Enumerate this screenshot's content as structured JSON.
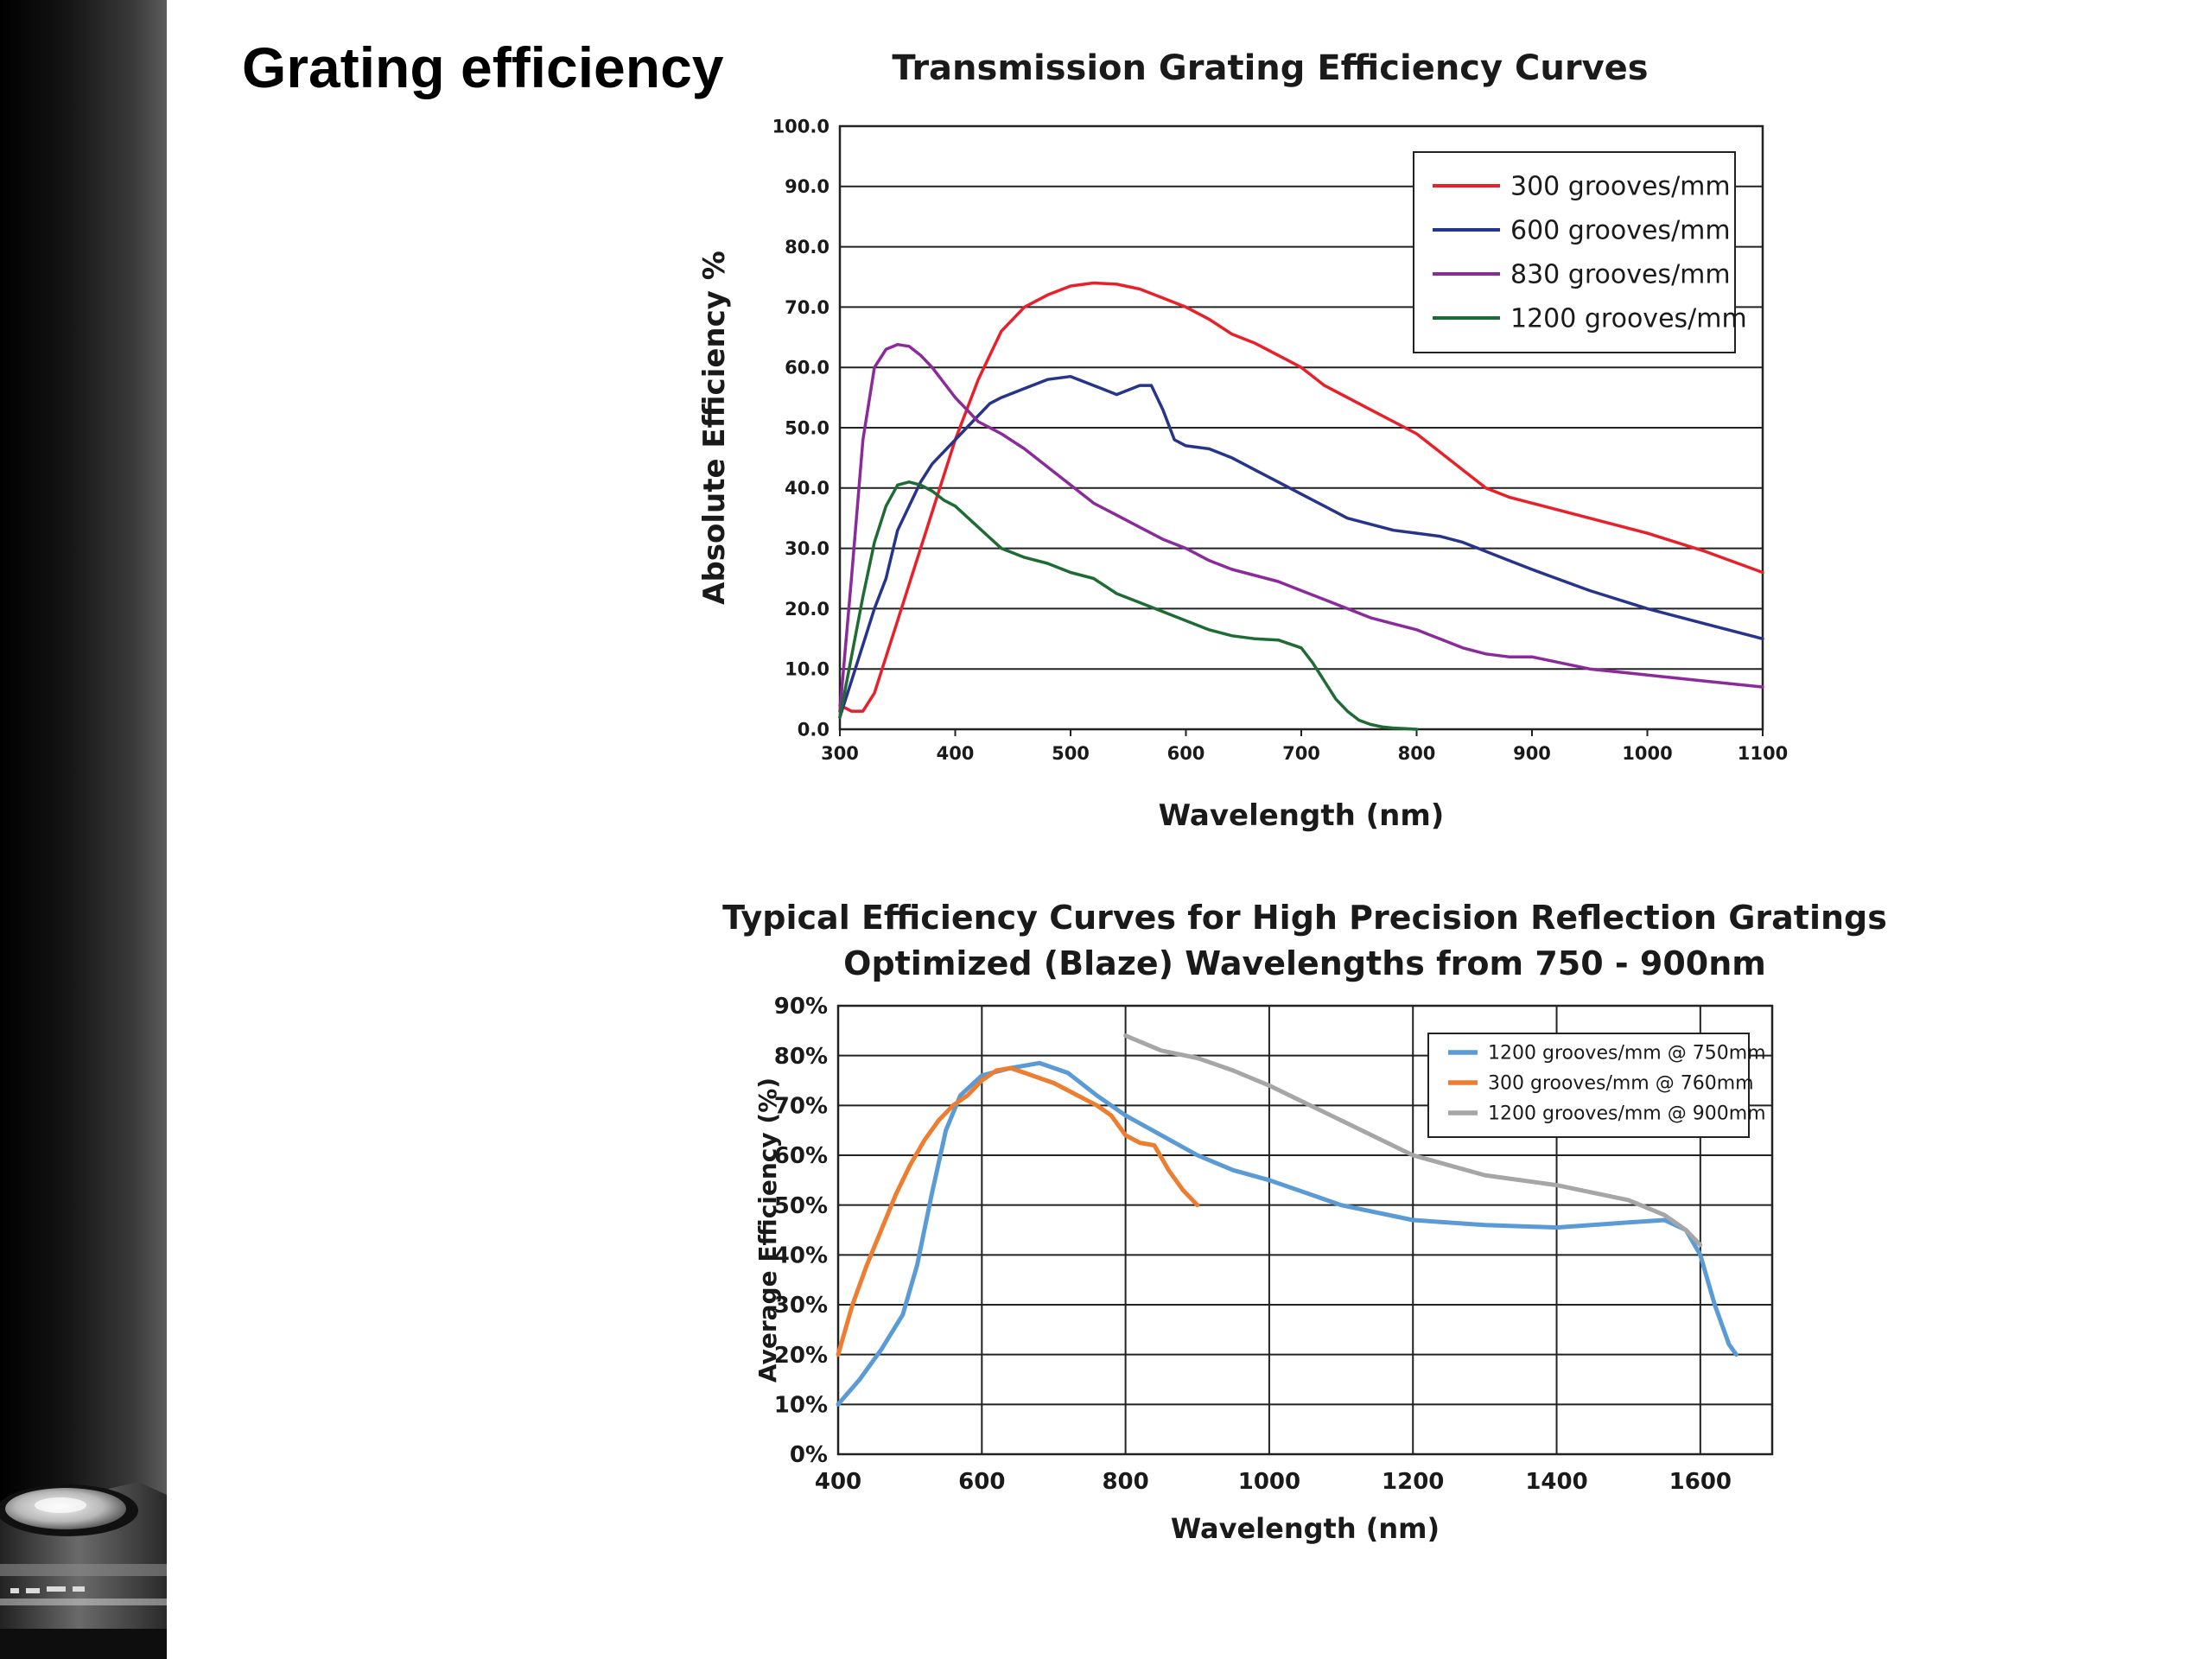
{
  "slide": {
    "title": "Grating efficiency"
  },
  "chart_data": [
    {
      "type": "line",
      "title": "Transmission Grating Efficiency Curves",
      "xlabel": "Wavelength (nm)",
      "ylabel": "Absolute Efficiency %",
      "xlim": [
        300,
        1100
      ],
      "ylim": [
        0,
        100
      ],
      "xticks": [
        "300",
        "400",
        "500",
        "600",
        "700",
        "800",
        "900",
        "1000",
        "1100"
      ],
      "yticks": [
        "0.0",
        "10.0",
        "20.0",
        "30.0",
        "40.0",
        "50.0",
        "60.0",
        "70.0",
        "80.0",
        "90.0",
        "100.0"
      ],
      "grid": "horizontal",
      "legend": "top-right",
      "series": [
        {
          "name": "300 grooves/mm",
          "color": "#e8202a",
          "x": [
            300,
            310,
            320,
            330,
            340,
            350,
            360,
            380,
            400,
            420,
            440,
            460,
            480,
            500,
            520,
            540,
            560,
            580,
            600,
            620,
            640,
            660,
            680,
            700,
            720,
            740,
            760,
            780,
            800,
            820,
            840,
            860,
            880,
            900,
            950,
            1000,
            1050,
            1100
          ],
          "y": [
            4,
            3,
            3,
            6,
            12,
            18,
            24,
            36,
            48,
            58,
            66,
            70,
            72,
            73.5,
            74,
            73.8,
            73,
            71.5,
            70,
            68,
            65.5,
            64,
            62,
            60,
            57,
            55,
            53,
            51,
            49,
            46,
            43,
            40,
            38.5,
            37.5,
            35,
            32.5,
            29.5,
            26
          ]
        },
        {
          "name": "600 grooves/mm",
          "color": "#27348b",
          "x": [
            300,
            310,
            320,
            330,
            340,
            350,
            360,
            370,
            380,
            400,
            420,
            430,
            440,
            460,
            480,
            500,
            520,
            540,
            560,
            570,
            580,
            590,
            600,
            620,
            640,
            660,
            680,
            700,
            720,
            740,
            760,
            780,
            800,
            820,
            840,
            860,
            880,
            900,
            950,
            1000,
            1050,
            1100
          ],
          "y": [
            2,
            8,
            14,
            20,
            25,
            33,
            37,
            41,
            44,
            48,
            52,
            54,
            55,
            56.5,
            58,
            58.5,
            57,
            55.5,
            57,
            57,
            53,
            48,
            47,
            46.5,
            45,
            43,
            41,
            39,
            37,
            35,
            34,
            33,
            32.5,
            32,
            31,
            29.5,
            28,
            26.5,
            23,
            20,
            17.5,
            15
          ]
        },
        {
          "name": "830 grooves/mm",
          "color": "#8b2a9b",
          "x": [
            300,
            310,
            320,
            330,
            340,
            350,
            360,
            370,
            380,
            400,
            420,
            440,
            460,
            480,
            500,
            520,
            540,
            560,
            580,
            600,
            620,
            640,
            660,
            680,
            700,
            720,
            740,
            760,
            780,
            800,
            820,
            840,
            860,
            880,
            900,
            950,
            1000,
            1050,
            1100
          ],
          "y": [
            3,
            25,
            48,
            60,
            63,
            63.8,
            63.5,
            62,
            60,
            55,
            51,
            49,
            46.5,
            43.5,
            40.5,
            37.5,
            35.5,
            33.5,
            31.5,
            30,
            28,
            26.5,
            25.5,
            24.5,
            23,
            21.5,
            20,
            18.5,
            17.5,
            16.5,
            15,
            13.5,
            12.5,
            12,
            12,
            10,
            9,
            8,
            7
          ]
        },
        {
          "name": "1200 grooves/mm",
          "color": "#1e6b34",
          "x": [
            300,
            310,
            320,
            330,
            340,
            350,
            360,
            370,
            380,
            390,
            400,
            420,
            440,
            460,
            480,
            500,
            520,
            540,
            560,
            580,
            600,
            620,
            640,
            660,
            680,
            700,
            710,
            720,
            730,
            740,
            750,
            760,
            770,
            780,
            790,
            800
          ],
          "y": [
            2,
            12,
            22,
            31,
            37,
            40.5,
            41,
            40.5,
            39.5,
            38,
            37,
            33.5,
            30,
            28.5,
            27.5,
            26,
            25,
            22.5,
            21,
            19.5,
            18,
            16.5,
            15.5,
            15,
            14.8,
            13.5,
            11,
            8,
            5,
            3,
            1.5,
            0.8,
            0.4,
            0.2,
            0.1,
            0
          ]
        }
      ]
    },
    {
      "type": "line",
      "title": "Typical Efficiency Curves for High Precision Reflection Gratings",
      "subtitle": "Optimized (Blaze) Wavelengths from 750 - 900nm",
      "xlabel": "Wavelength (nm)",
      "ylabel": "Average Efficiency (%)",
      "xlim": [
        400,
        1700
      ],
      "ylim": [
        0,
        90
      ],
      "xticks": [
        "400",
        "600",
        "800",
        "1000",
        "1200",
        "1400",
        "1600"
      ],
      "yticks": [
        "0%",
        "10%",
        "20%",
        "30%",
        "40%",
        "50%",
        "60%",
        "70%",
        "80%",
        "90%"
      ],
      "grid": "both",
      "legend": "top-right",
      "series": [
        {
          "name": "1200 grooves/mm @ 750mm",
          "color": "#5b9bd5",
          "x": [
            400,
            430,
            460,
            490,
            510,
            530,
            550,
            570,
            600,
            640,
            680,
            720,
            760,
            800,
            850,
            900,
            950,
            1000,
            1100,
            1200,
            1300,
            1400,
            1500,
            1550,
            1580,
            1600,
            1620,
            1640,
            1650
          ],
          "y": [
            10,
            15,
            21,
            28,
            38,
            52,
            65,
            72,
            76,
            77.5,
            78.5,
            76.5,
            72,
            68,
            64,
            60,
            57,
            55,
            50,
            47,
            46,
            45.5,
            46.5,
            47,
            45,
            40,
            30,
            22,
            20
          ]
        },
        {
          "name": "300 grooves/mm @ 760mm",
          "color": "#ed7d31",
          "x": [
            400,
            420,
            440,
            460,
            480,
            500,
            520,
            540,
            560,
            580,
            600,
            620,
            640,
            660,
            680,
            700,
            720,
            740,
            760,
            780,
            800,
            820,
            840,
            860,
            880,
            900
          ],
          "y": [
            20,
            30,
            38,
            45,
            52,
            58,
            63,
            67,
            70,
            72,
            75,
            77,
            77.5,
            76.5,
            75.5,
            74.5,
            73,
            71.5,
            70,
            68,
            64,
            62.5,
            62,
            57,
            53,
            50
          ]
        },
        {
          "name": "1200 grooves/mm @ 900mm",
          "color": "#a6a6a6",
          "x": [
            800,
            850,
            900,
            950,
            1000,
            1100,
            1200,
            1300,
            1400,
            1500,
            1550,
            1580,
            1600
          ],
          "y": [
            84,
            81,
            79.5,
            77,
            74,
            67,
            60,
            56,
            54,
            51,
            48,
            45,
            42
          ]
        }
      ]
    }
  ]
}
